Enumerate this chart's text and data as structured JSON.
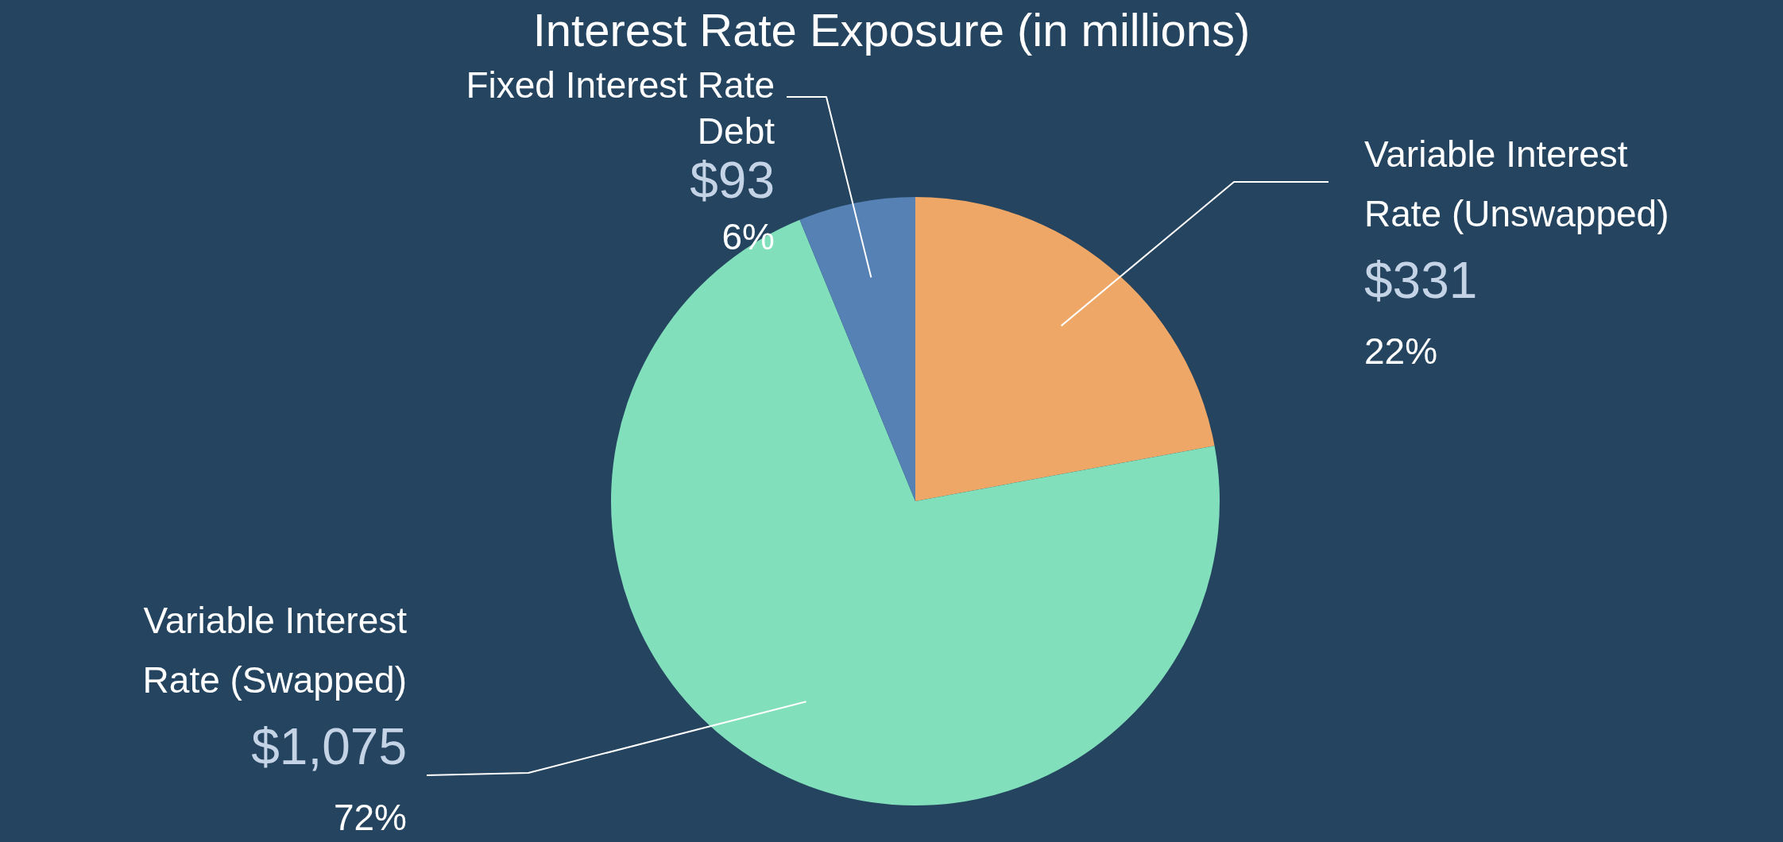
{
  "chart_data": {
    "type": "pie",
    "title": "Interest Rate Exposure (in millions)",
    "categories": [
      "Variable Interest Rate (Unswapped)",
      "Variable Interest Rate (Swapped)",
      "Fixed Interest Rate Debt"
    ],
    "values": [
      331,
      1075,
      93
    ],
    "colors": [
      "#eea766",
      "#82dfbc",
      "#5581b4"
    ],
    "value_labels": [
      "$331",
      "$1,075",
      "$93"
    ],
    "annotations": [
      {
        "text": "22%",
        "x": "Variable Interest Rate (Unswapped)"
      },
      {
        "text": "72%",
        "x": "Variable Interest Rate (Swapped)"
      },
      {
        "text": "6%",
        "x": "Fixed Interest Rate Debt"
      }
    ],
    "legend": false
  }
}
